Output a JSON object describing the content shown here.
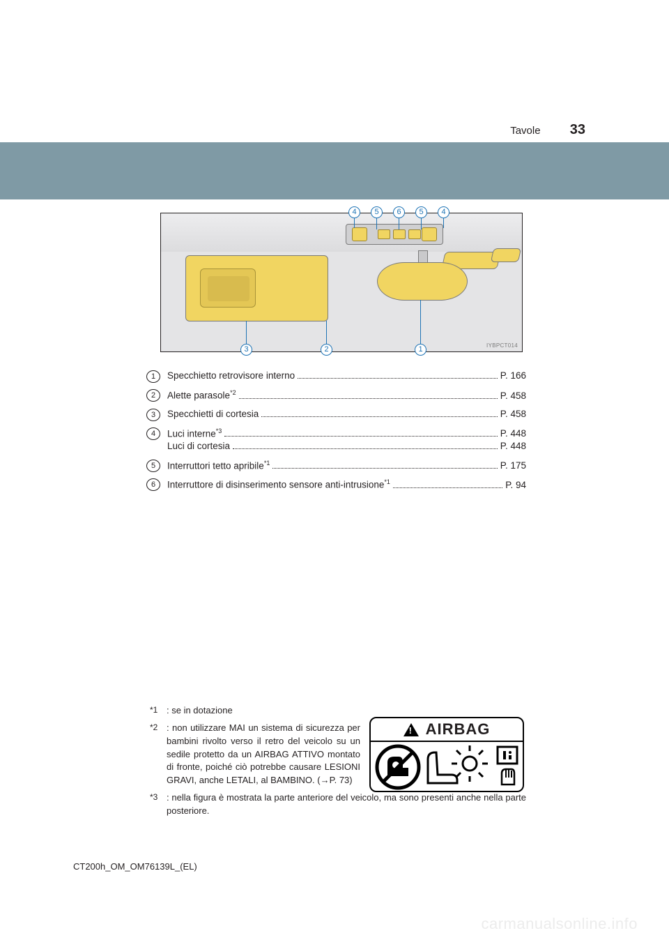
{
  "header": {
    "section": "Tavole",
    "page_number": "33"
  },
  "figure": {
    "code": "IYBPCT014",
    "accent_color": "#f1d561",
    "callout_color": "#1d73b5",
    "top_callouts": [
      "4",
      "5",
      "6",
      "5",
      "4"
    ],
    "bottom_callouts": [
      "3",
      "2",
      "1"
    ]
  },
  "items": [
    {
      "n": "1",
      "lines": [
        {
          "label": "Specchietto retrovisore interno",
          "page": "P. 166"
        }
      ]
    },
    {
      "n": "2",
      "lines": [
        {
          "label": "Alette parasole",
          "sup": "*2",
          "page": "P. 458"
        }
      ]
    },
    {
      "n": "3",
      "lines": [
        {
          "label": "Specchietti di cortesia",
          "page": "P. 458"
        }
      ]
    },
    {
      "n": "4",
      "lines": [
        {
          "label": "Luci interne",
          "sup": "*3",
          "page": "P. 448"
        },
        {
          "label": "Luci di cortesia",
          "page": "P. 448"
        }
      ]
    },
    {
      "n": "5",
      "lines": [
        {
          "label": "Interruttori tetto apribile",
          "sup": "*1",
          "page": "P. 175"
        }
      ]
    },
    {
      "n": "6",
      "lines": [
        {
          "label": "Interruttore di disinserimento sensore anti-intrusione",
          "sup": "*1",
          "page": "P. 94"
        }
      ]
    }
  ],
  "footnotes": {
    "n1": {
      "mark": "*1",
      "text": ": se in dotazione"
    },
    "n2": {
      "mark": "*2",
      "text": ": non utilizzare MAI un sistema di sicurezza per bambini rivolto verso il retro del veicolo su un sedile protetto da un AIRBAG ATTIVO montato di fronte, poiché ciò potrebbe causare LESIONI GRAVI, anche LETALI, al BAMBINO. (→P. 73)"
    },
    "n3": {
      "mark": "*3",
      "text": ": nella figura è mostrata la parte anteriore del veicolo, ma sono presenti anche nella parte posteriore."
    }
  },
  "airbag_label": "AIRBAG",
  "doc_id": "CT200h_OM_OM76139L_(EL)",
  "watermark": "carmanualsonline.info",
  "colors": {
    "band": "#7f9aa5",
    "text": "#231f20",
    "watermark": "#ececec"
  }
}
